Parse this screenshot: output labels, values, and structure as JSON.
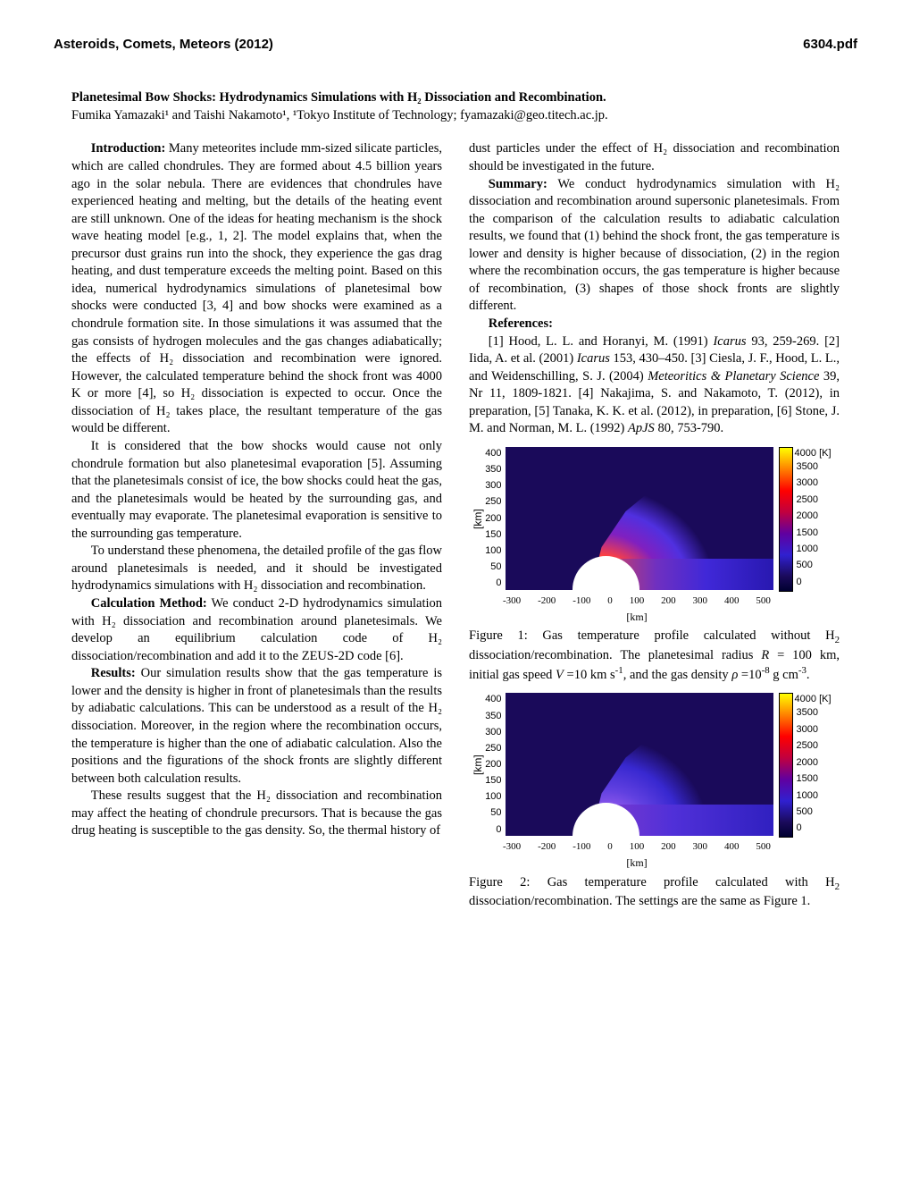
{
  "header": {
    "left": "Asteroids, Comets, Meteors (2012)",
    "right": "6304.pdf"
  },
  "title": "Planetesimal Bow Shocks: Hydrodynamics Simulations with H₂ Dissociation and Recombination.",
  "authors": "Fumika Yamazaki¹ and Taishi Nakamoto¹, ¹Tokyo Institute of Technology; fyamazaki@geo.titech.ac.jp.",
  "sections": {
    "intro_head": "Introduction:",
    "intro_p1": " Many meteorites include mm-sized silicate particles, which are called chondrules. They are formed about 4.5 billion years ago in the solar nebula. There are evidences that chondrules have experienced heating and melting, but the details of the heating event are still unknown. One of the ideas for heating mechanism is the shock wave heating model [e.g., 1, 2]. The model explains that, when the precursor dust grains run into the shock, they experience the gas drag heating, and dust temperature exceeds the melting point. Based on this idea, numerical hydrodynamics simulations of planetesimal bow shocks were conducted [3, 4] and bow shocks were examined as a chondrule formation site. In those simulations it was assumed that the gas consists of hydrogen molecules and the gas changes adiabatically; the effects of H₂ dissociation and recombination were ignored. However, the calculated temperature behind the shock front was 4000 K or more [4], so H₂ dissociation is expected to occur. Once the dissociation of H₂ takes place, the resultant temperature of the gas would be different.",
    "intro_p2": "It is considered that the bow shocks would cause not only chondrule formation but also planetesimal evaporation [5]. Assuming that the planetesimals consist of ice, the bow shocks could heat the gas, and the planetesimals would be heated by the surrounding gas, and eventually may evaporate. The planetesimal evaporation is sensitive to the surrounding gas temperature.",
    "intro_p3": "To understand these phenomena, the detailed profile of the gas flow around planetesimals is needed, and it should be investigated hydrodynamics simulations with H₂ dissociation and recombination.",
    "calc_head": "Calculation Method:",
    "calc_p1": " We conduct 2-D hydrodynamics simulation with H₂ dissociation and recombination around planetesimals. We develop an equilibrium calculation code of H₂ dissociation/recombination and add it to the ZEUS-2D code [6].",
    "results_head": "Results:",
    "results_p1": " Our simulation results show that the gas temperature is lower and the density is higher in front of planetesimals than the results by adiabatic calculations. This can be understood as a result of the H₂ dissociation. Moreover, in the region where the recombination occurs, the temperature is higher than the one of adiabatic calculation. Also the positions and the figurations of the shock fronts are slightly different between both calculation results.",
    "results_p2": "These results suggest that the H₂ dissociation and recombination may affect the heating of chondrule precursors. That is because the gas drug heating is susceptible to the gas density. So, the thermal history of",
    "col2_top": "dust particles under the effect of H₂ dissociation and recombination should be investigated in the future.",
    "summary_head": "Summary:",
    "summary_p1": " We conduct hydrodynamics simulation with H₂ dissociation and recombination around supersonic planetesimals. From the comparison of the calculation results to adiabatic calculation results, we found that (1) behind the shock front, the gas temperature is lower and density is higher because of dissociation, (2) in the region where the recombination occurs, the gas temperature is higher because of recombination, (3) shapes of those shock fronts are slightly different.",
    "refs_head": "References:",
    "refs_p1": "[1] Hood, L. L. and Horanyi, M. (1991) Icarus 93, 259-269. [2] Iida, A. et al. (2001) Icarus 153, 430–450. [3] Ciesla, J. F., Hood, L. L., and Weidenschilling, S. J. (2004) Meteoritics & Planetary Science 39, Nr 11, 1809-1821. [4] Nakajima, S. and Nakamoto, T. (2012), in preparation, [5] Tanaka, K. K. et al. (2012), in preparation, [6] Stone, J. M. and Norman, M. L. (1992) ApJS 80, 753-790."
  },
  "figures": {
    "fig1": {
      "caption": "Figure 1: Gas temperature profile calculated without H₂ dissociation/recombination. The planetesimal radius R = 100 km, initial gas speed V =10 km s⁻¹, and the gas density ρ =10⁻⁸ g cm⁻³.",
      "type": "heatmap",
      "xlim": [
        -300,
        500
      ],
      "ylim": [
        0,
        400
      ],
      "xticks": [
        "-300",
        "-200",
        "-100",
        "0",
        "100",
        "200",
        "300",
        "400",
        "500"
      ],
      "yticks": [
        "400",
        "350",
        "300",
        "250",
        "200",
        "150",
        "100",
        "50",
        "0"
      ],
      "xlabel": "[km]",
      "ylabel": "[km]",
      "cbar_label": "4000 [K]",
      "cbar_ticks": [
        "3500",
        "3000",
        "2500",
        "2000",
        "1500",
        "1000",
        "500",
        "0"
      ],
      "background_color": "#1a0a5a",
      "planet": {
        "cx_km": 0,
        "cy_km": 0,
        "r_km": 100,
        "color": "#ffffff"
      },
      "shock_gradient": "radial-gradient(ellipse 120% 200% at 35% 100%, #ffffa0 6%, #ff4040 12%, #8020c0 20%, #5030e0 28%, #1a0a5a 36%)",
      "tail_gradient": "linear-gradient(to right, #d04060 0%, #7030c0 30%, #4028d8 60%, #2818b0 100%)"
    },
    "fig2": {
      "caption": "Figure 2: Gas temperature profile calculated with H₂ dissociation/recombination. The settings are the same as Figure 1.",
      "type": "heatmap",
      "xlim": [
        -300,
        500
      ],
      "ylim": [
        0,
        400
      ],
      "xticks": [
        "-300",
        "-200",
        "-100",
        "0",
        "100",
        "200",
        "300",
        "400",
        "500"
      ],
      "yticks": [
        "400",
        "350",
        "300",
        "250",
        "200",
        "150",
        "100",
        "50",
        "0"
      ],
      "xlabel": "[km]",
      "ylabel": "[km]",
      "cbar_label": "4000 [K]",
      "cbar_ticks": [
        "3500",
        "3000",
        "2500",
        "2000",
        "1500",
        "1000",
        "500",
        "0"
      ],
      "background_color": "#1a0a5a",
      "planet": {
        "cx_km": 0,
        "cy_km": 0,
        "r_km": 100,
        "color": "#ffffff"
      },
      "shock_gradient": "radial-gradient(ellipse 100% 180% at 38% 100%, #a060f0 8%, #6040e0 18%, #3828d0 28%, #1a0a5a 38%)",
      "tail_gradient": "linear-gradient(to right, #7838d0 0%, #5030d8 40%, #3020c0 100%)"
    }
  }
}
